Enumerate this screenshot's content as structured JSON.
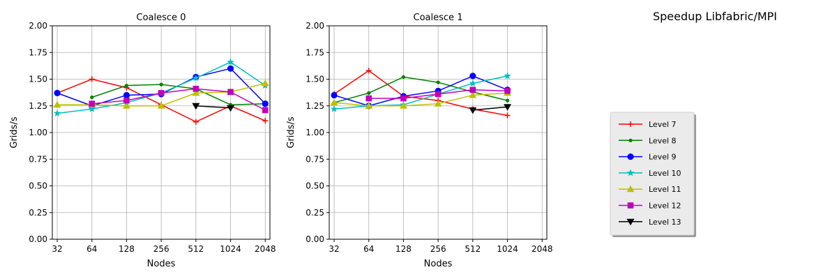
{
  "figure": {
    "suptitle": "Speedup Libfabric/MPI"
  },
  "colors": {
    "Level 7": "#ff0000",
    "Level 8": "#008000",
    "Level 9": "#0000ff",
    "Level 10": "#00bfbf",
    "Level 11": "#bfbf00",
    "Level 12": "#bf00bf",
    "Level 13": "#000000"
  },
  "markers": {
    "Level 7": "plus",
    "Level 8": "dot",
    "Level 9": "circle",
    "Level 10": "star",
    "Level 11": "triangle-up",
    "Level 12": "square",
    "Level 13": "triangle-down"
  },
  "legend": {
    "placement": "right",
    "entries": [
      "Level 7",
      "Level 8",
      "Level 9",
      "Level 10",
      "Level 11",
      "Level 12",
      "Level 13"
    ]
  },
  "chart_data": [
    {
      "type": "line",
      "title": "Coalesce 0",
      "xlabel": "Nodes",
      "ylabel": "Grids/s",
      "x": [
        32,
        64,
        128,
        256,
        512,
        1024,
        2048
      ],
      "x_scale": "log2",
      "xlim": [
        29,
        2250
      ],
      "ylim": [
        0,
        2
      ],
      "yticks": [
        "0.00",
        "0.25",
        "0.50",
        "0.75",
        "1.00",
        "1.25",
        "1.50",
        "1.75",
        "2.00"
      ],
      "xticks": [
        "32",
        "64",
        "128",
        "256",
        "512",
        "1024",
        "2048"
      ],
      "grid": true,
      "series": [
        {
          "name": "Level 7",
          "values": [
            1.37,
            1.5,
            1.42,
            1.26,
            1.1,
            1.25,
            1.11
          ]
        },
        {
          "name": "Level 8",
          "values": [
            null,
            1.33,
            1.44,
            1.45,
            1.41,
            1.26,
            1.27
          ]
        },
        {
          "name": "Level 9",
          "values": [
            1.37,
            1.25,
            1.35,
            1.36,
            1.52,
            1.6,
            1.27
          ]
        },
        {
          "name": "Level 10",
          "values": [
            1.18,
            1.22,
            1.28,
            1.37,
            1.51,
            1.66,
            1.44
          ]
        },
        {
          "name": "Level 11",
          "values": [
            1.26,
            1.26,
            1.25,
            1.25,
            1.37,
            1.38,
            1.46
          ]
        },
        {
          "name": "Level 12",
          "values": [
            null,
            1.27,
            1.3,
            1.37,
            1.41,
            1.38,
            1.21
          ]
        },
        {
          "name": "Level 13",
          "values": [
            null,
            null,
            null,
            null,
            1.25,
            1.23,
            null
          ]
        }
      ]
    },
    {
      "type": "line",
      "title": "Coalesce 1",
      "xlabel": "Nodes",
      "ylabel": "Grids/s",
      "x": [
        32,
        64,
        128,
        256,
        512,
        1024,
        2048
      ],
      "x_scale": "log2",
      "xlim": [
        29,
        2250
      ],
      "ylim": [
        0,
        2
      ],
      "yticks": [
        "0.00",
        "0.25",
        "0.50",
        "0.75",
        "1.00",
        "1.25",
        "1.50",
        "1.75",
        "2.00"
      ],
      "xticks": [
        "32",
        "64",
        "128",
        "256",
        "512",
        "1024",
        "2048"
      ],
      "grid": true,
      "series": [
        {
          "name": "Level 7",
          "values": [
            1.36,
            1.58,
            1.34,
            1.3,
            1.22,
            1.16,
            null
          ]
        },
        {
          "name": "Level 8",
          "values": [
            1.28,
            1.37,
            1.52,
            1.47,
            1.38,
            1.3,
            null
          ]
        },
        {
          "name": "Level 9",
          "values": [
            1.35,
            1.25,
            1.34,
            1.39,
            1.53,
            1.4,
            null
          ]
        },
        {
          "name": "Level 10",
          "values": [
            1.22,
            1.25,
            1.26,
            1.36,
            1.46,
            1.53,
            null
          ]
        },
        {
          "name": "Level 11",
          "values": [
            1.28,
            1.25,
            1.25,
            1.27,
            1.35,
            1.37,
            null
          ]
        },
        {
          "name": "Level 12",
          "values": [
            null,
            1.32,
            1.32,
            1.36,
            1.4,
            1.39,
            null
          ]
        },
        {
          "name": "Level 13",
          "values": [
            null,
            null,
            null,
            null,
            1.21,
            1.24,
            null
          ]
        }
      ]
    }
  ]
}
